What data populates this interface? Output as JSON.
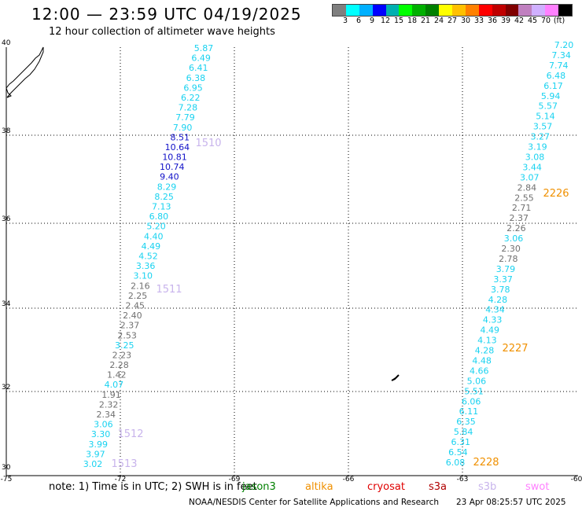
{
  "header": {
    "title": "12:00 — 23:59 UTC 04/19/2025",
    "subtitle": "12 hour collection of altimeter wave heights"
  },
  "legend": {
    "colors": [
      "#7f7f7f",
      "#00ffff",
      "#00b0ff",
      "#0000ff",
      "#00b0b0",
      "#00ff00",
      "#00b000",
      "#008000",
      "#ffff00",
      "#ffc000",
      "#ff8000",
      "#ff0000",
      "#c00000",
      "#800000",
      "#c080c0",
      "#d0b0ff",
      "#ff80ff",
      "#000000"
    ],
    "labels": [
      "3",
      "6",
      "9",
      "12",
      "15",
      "18",
      "21",
      "24",
      "27",
      "30",
      "33",
      "36",
      "39",
      "42",
      "45",
      "70",
      "(ft)"
    ]
  },
  "axes": {
    "lon_ticks": [
      "-75",
      "-72",
      "-69",
      "-66",
      "-63",
      "-60"
    ],
    "lat_ticks": [
      "40",
      "38",
      "36",
      "34",
      "32",
      "30"
    ]
  },
  "passes": [
    {
      "label": "1510",
      "color": "#c8b4ec"
    },
    {
      "label": "1511",
      "color": "#c8b4ec"
    },
    {
      "label": "1512",
      "color": "#c8b4ec"
    },
    {
      "label": "1513",
      "color": "#c8b4ec"
    },
    {
      "label": "2226",
      "color": "#f09000"
    },
    {
      "label": "2227",
      "color": "#f09000"
    },
    {
      "label": "2228",
      "color": "#f09000"
    }
  ],
  "tracks": {
    "west": [
      {
        "v": "5.87",
        "c": "#19d2f0"
      },
      {
        "v": "6.49",
        "c": "#19d2f0"
      },
      {
        "v": "6.41",
        "c": "#19d2f0"
      },
      {
        "v": "6.38",
        "c": "#19d2f0"
      },
      {
        "v": "6.95",
        "c": "#19d2f0"
      },
      {
        "v": "6.22",
        "c": "#19d2f0"
      },
      {
        "v": "7.28",
        "c": "#19d2f0"
      },
      {
        "v": "7.79",
        "c": "#19d2f0"
      },
      {
        "v": "7.90",
        "c": "#19d2f0"
      },
      {
        "v": "8.51",
        "c": "#1010c8"
      },
      {
        "v": "10.64",
        "c": "#1010c8"
      },
      {
        "v": "10.81",
        "c": "#1010c8"
      },
      {
        "v": "10.74",
        "c": "#1010c8"
      },
      {
        "v": "9.40",
        "c": "#1010c8"
      },
      {
        "v": "8.29",
        "c": "#19d2f0"
      },
      {
        "v": "8.25",
        "c": "#19d2f0"
      },
      {
        "v": "7.13",
        "c": "#19d2f0"
      },
      {
        "v": "6.80",
        "c": "#19d2f0"
      },
      {
        "v": "5.20",
        "c": "#19d2f0"
      },
      {
        "v": "4.40",
        "c": "#19d2f0"
      },
      {
        "v": "4.49",
        "c": "#19d2f0"
      },
      {
        "v": "4.52",
        "c": "#19d2f0"
      },
      {
        "v": "3.36",
        "c": "#19d2f0"
      },
      {
        "v": "3.10",
        "c": "#19d2f0"
      },
      {
        "v": "2.16",
        "c": "#707070"
      },
      {
        "v": "2.25",
        "c": "#707070"
      },
      {
        "v": "2.45",
        "c": "#707070"
      },
      {
        "v": "2.40",
        "c": "#707070"
      },
      {
        "v": "2.37",
        "c": "#707070"
      },
      {
        "v": "2.53",
        "c": "#707070"
      },
      {
        "v": "3.25",
        "c": "#19d2f0"
      },
      {
        "v": "2.23",
        "c": "#707070"
      },
      {
        "v": "2.28",
        "c": "#707070"
      },
      {
        "v": "1.42",
        "c": "#707070"
      },
      {
        "v": "4.07",
        "c": "#19d2f0"
      },
      {
        "v": "1.91",
        "c": "#707070"
      },
      {
        "v": "2.32",
        "c": "#707070"
      },
      {
        "v": "2.34",
        "c": "#707070"
      },
      {
        "v": "3.06",
        "c": "#19d2f0"
      },
      {
        "v": "3.30",
        "c": "#19d2f0"
      },
      {
        "v": "3.99",
        "c": "#19d2f0"
      },
      {
        "v": "3.97",
        "c": "#19d2f0"
      },
      {
        "v": "3.02",
        "c": "#19d2f0"
      }
    ],
    "east": [
      {
        "v": "7.20",
        "c": "#19d2f0"
      },
      {
        "v": "7.34",
        "c": "#19d2f0"
      },
      {
        "v": "7.74",
        "c": "#19d2f0"
      },
      {
        "v": "6.48",
        "c": "#19d2f0"
      },
      {
        "v": "6.17",
        "c": "#19d2f0"
      },
      {
        "v": "5.94",
        "c": "#19d2f0"
      },
      {
        "v": "5.57",
        "c": "#19d2f0"
      },
      {
        "v": "5.14",
        "c": "#19d2f0"
      },
      {
        "v": "3.57",
        "c": "#19d2f0"
      },
      {
        "v": "3.27",
        "c": "#19d2f0"
      },
      {
        "v": "3.19",
        "c": "#19d2f0"
      },
      {
        "v": "3.08",
        "c": "#19d2f0"
      },
      {
        "v": "3.44",
        "c": "#19d2f0"
      },
      {
        "v": "3.07",
        "c": "#19d2f0"
      },
      {
        "v": "2.84",
        "c": "#707070"
      },
      {
        "v": "2.55",
        "c": "#707070"
      },
      {
        "v": "2.71",
        "c": "#707070"
      },
      {
        "v": "2.37",
        "c": "#707070"
      },
      {
        "v": "2.26",
        "c": "#707070"
      },
      {
        "v": "3.06",
        "c": "#19d2f0"
      },
      {
        "v": "2.30",
        "c": "#707070"
      },
      {
        "v": "2.78",
        "c": "#707070"
      },
      {
        "v": "3.79",
        "c": "#19d2f0"
      },
      {
        "v": "3.37",
        "c": "#19d2f0"
      },
      {
        "v": "3.78",
        "c": "#19d2f0"
      },
      {
        "v": "4.28",
        "c": "#19d2f0"
      },
      {
        "v": "4.34",
        "c": "#19d2f0"
      },
      {
        "v": "4.33",
        "c": "#19d2f0"
      },
      {
        "v": "4.49",
        "c": "#19d2f0"
      },
      {
        "v": "4.13",
        "c": "#19d2f0"
      },
      {
        "v": "4.28",
        "c": "#19d2f0"
      },
      {
        "v": "4.48",
        "c": "#19d2f0"
      },
      {
        "v": "4.66",
        "c": "#19d2f0"
      },
      {
        "v": "5.06",
        "c": "#19d2f0"
      },
      {
        "v": "5.51",
        "c": "#19d2f0"
      },
      {
        "v": "6.06",
        "c": "#19d2f0"
      },
      {
        "v": "6.11",
        "c": "#19d2f0"
      },
      {
        "v": "6.35",
        "c": "#19d2f0"
      },
      {
        "v": "5.84",
        "c": "#19d2f0"
      },
      {
        "v": "6.31",
        "c": "#19d2f0"
      },
      {
        "v": "6.54",
        "c": "#19d2f0"
      },
      {
        "v": "6.08",
        "c": "#19d2f0"
      }
    ]
  },
  "footer": {
    "note": "note:  1) Time is in UTC; 2) SWH is in feet",
    "satellites": [
      {
        "name": "jason3",
        "color": "#008000"
      },
      {
        "name": "altika",
        "color": "#f09000"
      },
      {
        "name": "cryosat",
        "color": "#e00000"
      },
      {
        "name": "s3a",
        "color": "#b00000"
      },
      {
        "name": "s3b",
        "color": "#c8b4ec"
      },
      {
        "name": "swot",
        "color": "#ff80ff"
      }
    ],
    "credit": "NOAA/NESDIS Center for Satellite Applications and Research",
    "timestamp": "23 Apr 08:25:57 UTC 2025"
  }
}
